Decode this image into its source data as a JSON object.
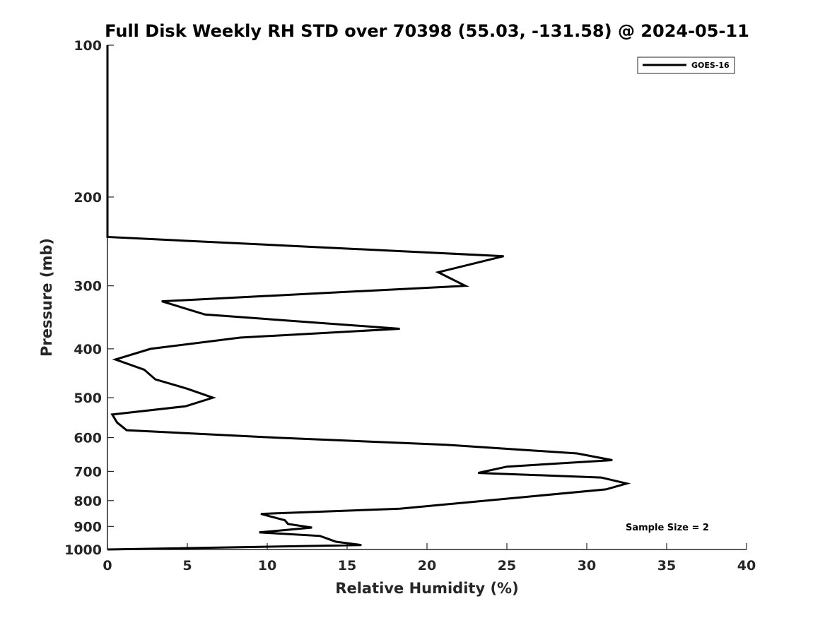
{
  "chart_data": {
    "type": "line",
    "title": "Full Disk Weekly RH STD over 70398 (55.03, -131.58) @ 2024-05-11",
    "xlabel": "Relative Humidity (%)",
    "ylabel": "Pressure (mb)",
    "xlim": [
      0,
      40
    ],
    "ylim": [
      100,
      1000
    ],
    "y_scale": "log",
    "y_reversed": true,
    "x_ticks": [
      "0",
      "5",
      "10",
      "15",
      "20",
      "25",
      "30",
      "35",
      "40"
    ],
    "y_ticks": [
      "100",
      "200",
      "300",
      "400",
      "500",
      "600",
      "700",
      "800",
      "900",
      "1000"
    ],
    "grid": false,
    "legend_position": "top-right",
    "annotation": "Sample Size = 2",
    "series": [
      {
        "name": "GOES-16",
        "color": "#000000",
        "points": [
          [
            0,
            100
          ],
          [
            0,
            150
          ],
          [
            0,
            200
          ],
          [
            0,
            240
          ],
          [
            24.8,
            262
          ],
          [
            20.7,
            282
          ],
          [
            22.4,
            300
          ],
          [
            3.4,
            322
          ],
          [
            6.1,
            342
          ],
          [
            18.3,
            365
          ],
          [
            8.3,
            380
          ],
          [
            2.7,
            400
          ],
          [
            0.5,
            420
          ],
          [
            2.3,
            440
          ],
          [
            3.0,
            460
          ],
          [
            5.0,
            480
          ],
          [
            6.6,
            500
          ],
          [
            4.9,
            520
          ],
          [
            0.3,
            540
          ],
          [
            0.6,
            560
          ],
          [
            1.2,
            580
          ],
          [
            10.5,
            600
          ],
          [
            21.2,
            620
          ],
          [
            29.4,
            645
          ],
          [
            31.6,
            665
          ],
          [
            25.0,
            685
          ],
          [
            23.2,
            705
          ],
          [
            30.9,
            720
          ],
          [
            32.5,
            740
          ],
          [
            31.2,
            760
          ],
          [
            18.3,
            830
          ],
          [
            9.6,
            850
          ],
          [
            11.1,
            875
          ],
          [
            11.3,
            890
          ],
          [
            12.8,
            905
          ],
          [
            9.5,
            925
          ],
          [
            13.3,
            940
          ],
          [
            14.3,
            965
          ],
          [
            15.9,
            980
          ],
          [
            0,
            1000
          ]
        ]
      }
    ]
  }
}
